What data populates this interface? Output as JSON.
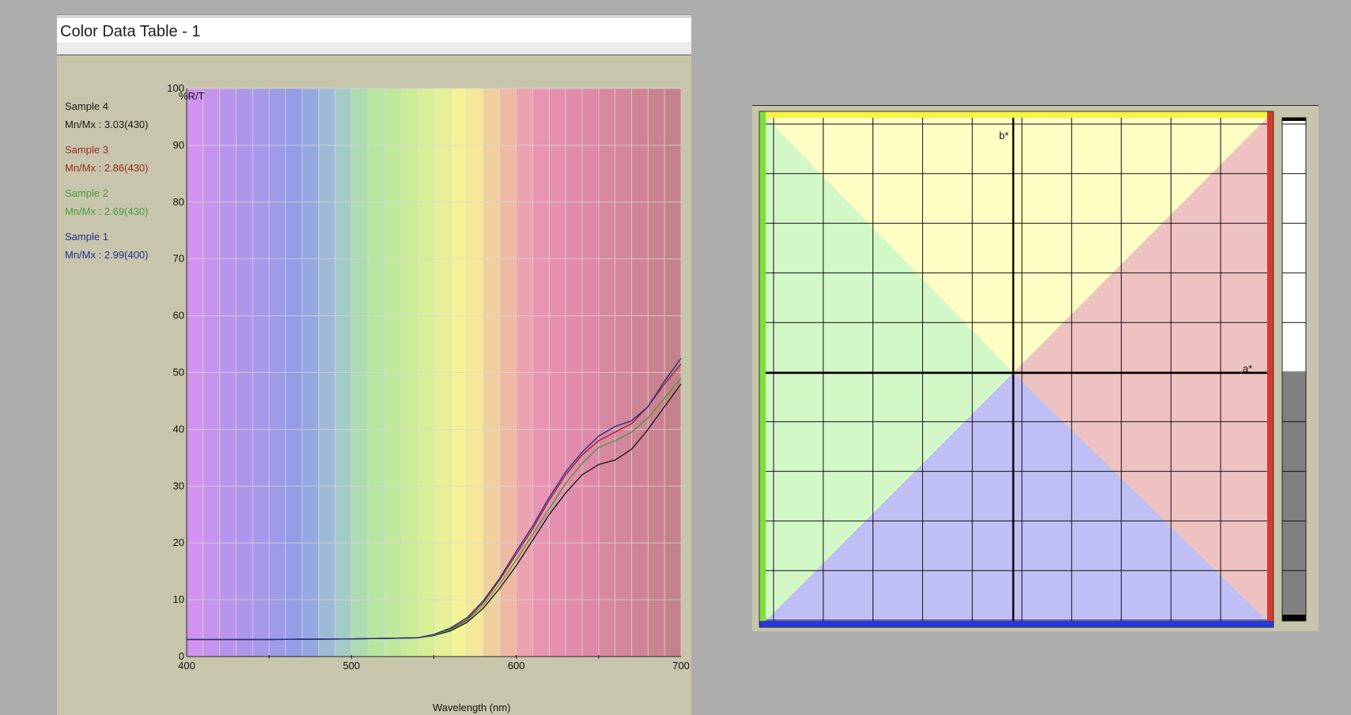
{
  "window": {
    "title": "Color Data Table - 1"
  },
  "chart_data": [
    {
      "type": "line",
      "xlabel": "Wavelength (nm)",
      "ylabel": "%R/T",
      "xlim": [
        400,
        700
      ],
      "ylim": [
        0,
        100
      ],
      "xticks": [
        "400",
        "500",
        "600",
        "700"
      ],
      "yticks": [
        "0",
        "10",
        "20",
        "30",
        "40",
        "50",
        "60",
        "70",
        "80",
        "90",
        "100"
      ],
      "grid": true,
      "legend_position": "left",
      "x": [
        400,
        450,
        500,
        540,
        550,
        560,
        570,
        580,
        590,
        600,
        610,
        620,
        630,
        640,
        650,
        660,
        670,
        680,
        690,
        700
      ],
      "series": [
        {
          "name": "Sample 4",
          "stat": "Mn/Mx : 3.03(430)",
          "color": "#1a1a1a",
          "values": [
            3.0,
            3.0,
            3.1,
            3.3,
            3.7,
            4.5,
            6.0,
            8.5,
            12.0,
            16.0,
            20.5,
            25.0,
            28.8,
            32.0,
            33.8,
            34.6,
            36.5,
            40.0,
            44.0,
            48.0
          ]
        },
        {
          "name": "Sample 3",
          "stat": "Mn/Mx : 2.86(430)",
          "color": "#9a2a2a",
          "values": [
            3.0,
            3.0,
            3.1,
            3.3,
            3.8,
            4.8,
            6.5,
            9.5,
            13.5,
            18.0,
            22.5,
            27.5,
            32.0,
            35.5,
            38.0,
            39.5,
            41.0,
            44.0,
            48.0,
            51.5
          ]
        },
        {
          "name": "Sample 2",
          "stat": "Mn/Mx : 2.69(430)",
          "color": "#4f9a3a",
          "values": [
            3.0,
            3.0,
            3.1,
            3.3,
            3.8,
            4.7,
            6.3,
            9.0,
            12.8,
            17.0,
            21.5,
            26.0,
            30.5,
            34.0,
            36.8,
            38.0,
            39.5,
            42.0,
            45.5,
            49.0
          ]
        },
        {
          "name": "Sample 1",
          "stat": "Mn/Mx : 2.99(400)",
          "color": "#27308e",
          "values": [
            3.0,
            3.0,
            3.1,
            3.3,
            3.9,
            5.0,
            6.8,
            9.8,
            13.8,
            18.5,
            23.0,
            28.0,
            32.5,
            36.0,
            38.8,
            40.5,
            41.5,
            44.0,
            48.5,
            52.5
          ]
        }
      ]
    },
    {
      "type": "scatter",
      "xlabel": "a*",
      "ylabel": "b*",
      "grid": true,
      "quadrant_colors": {
        "top": "#fdfdc4",
        "left": "#d2f8c8",
        "right": "#efc2c2",
        "bottom": "#c0bff5"
      },
      "edge_colors": {
        "top": "#f5f542",
        "left": "#7ce038",
        "right": "#d83a28",
        "bottom": "#2a37e0"
      },
      "lightness_bar": {
        "upper_color": "#ffffff",
        "lower_color": "#808080"
      }
    }
  ]
}
